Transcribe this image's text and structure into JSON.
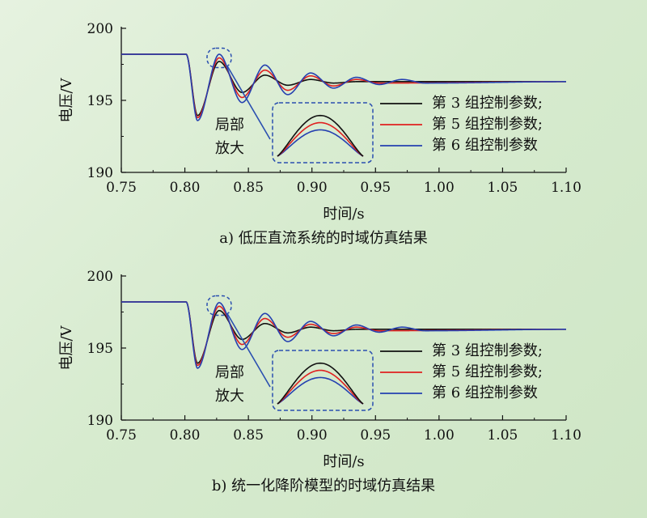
{
  "chart_data": [
    {
      "type": "line",
      "caption": "a) 低压直流系统的时域仿真结果",
      "xlabel": "时间/s",
      "ylabel": "电压/V",
      "xlim": [
        0.75,
        1.1
      ],
      "ylim": [
        190,
        200
      ],
      "xticks": [
        "0.75",
        "0.80",
        "0.85",
        "0.90",
        "0.95",
        "1.00",
        "1.05",
        "1.10"
      ],
      "yticks": [
        "190",
        "195",
        "200"
      ],
      "annotation": [
        "局部",
        "放大"
      ],
      "legend_position": "right",
      "series": [
        {
          "name": "第 3 组控制参数;",
          "color": "#111111",
          "x": [
            0.75,
            0.801,
            0.81,
            0.827,
            0.845,
            0.863,
            0.881,
            0.899,
            0.917,
            0.935,
            1.1
          ],
          "y": [
            198.2,
            198.2,
            193.95,
            197.7,
            195.55,
            196.75,
            196.05,
            196.45,
            196.2,
            196.3,
            196.3
          ]
        },
        {
          "name": "第 5 组控制参数;",
          "color": "#e02020",
          "x": [
            0.75,
            0.801,
            0.81,
            0.827,
            0.845,
            0.863,
            0.881,
            0.899,
            0.917,
            0.935,
            0.953,
            1.1
          ],
          "y": [
            198.2,
            198.2,
            193.8,
            197.95,
            195.2,
            197.1,
            195.7,
            196.7,
            196.0,
            196.45,
            196.2,
            196.3
          ]
        },
        {
          "name": "第 6 组控制参数",
          "color": "#2540b0",
          "x": [
            0.75,
            0.801,
            0.81,
            0.827,
            0.845,
            0.863,
            0.881,
            0.899,
            0.917,
            0.935,
            0.953,
            0.971,
            0.989,
            1.1
          ],
          "y": [
            198.2,
            198.2,
            193.6,
            198.2,
            194.85,
            197.45,
            195.4,
            196.9,
            195.85,
            196.6,
            196.1,
            196.45,
            196.2,
            196.3
          ]
        }
      ]
    },
    {
      "type": "line",
      "caption": "b) 统一化降阶模型的时域仿真结果",
      "xlabel": "时间/s",
      "ylabel": "电压/V",
      "xlim": [
        0.75,
        1.1
      ],
      "ylim": [
        190,
        200
      ],
      "xticks": [
        "0.75",
        "0.80",
        "0.85",
        "0.90",
        "0.95",
        "1.00",
        "1.05",
        "1.10"
      ],
      "yticks": [
        "190",
        "195",
        "200"
      ],
      "annotation": [
        "局部",
        "放大"
      ],
      "legend_position": "right",
      "series": [
        {
          "name": "第 3 组控制参数;",
          "color": "#111111",
          "x": [
            0.75,
            0.801,
            0.81,
            0.827,
            0.845,
            0.863,
            0.881,
            0.899,
            0.917,
            0.935,
            1.1
          ],
          "y": [
            198.2,
            198.2,
            193.95,
            197.6,
            195.6,
            196.7,
            196.05,
            196.45,
            196.2,
            196.3,
            196.3
          ]
        },
        {
          "name": "第 5 组控制参数;",
          "color": "#e02020",
          "x": [
            0.75,
            0.801,
            0.81,
            0.827,
            0.845,
            0.863,
            0.881,
            0.899,
            0.917,
            0.935,
            0.953,
            1.1
          ],
          "y": [
            198.2,
            198.2,
            193.8,
            197.9,
            195.25,
            197.05,
            195.75,
            196.65,
            196.0,
            196.45,
            196.2,
            196.3
          ]
        },
        {
          "name": "第 6 组控制参数",
          "color": "#2540b0",
          "x": [
            0.75,
            0.801,
            0.81,
            0.827,
            0.845,
            0.863,
            0.881,
            0.899,
            0.917,
            0.935,
            0.953,
            0.971,
            0.989,
            1.1
          ],
          "y": [
            198.2,
            198.2,
            193.6,
            198.15,
            194.9,
            197.4,
            195.45,
            196.85,
            195.85,
            196.6,
            196.1,
            196.45,
            196.2,
            196.3
          ]
        }
      ]
    }
  ]
}
